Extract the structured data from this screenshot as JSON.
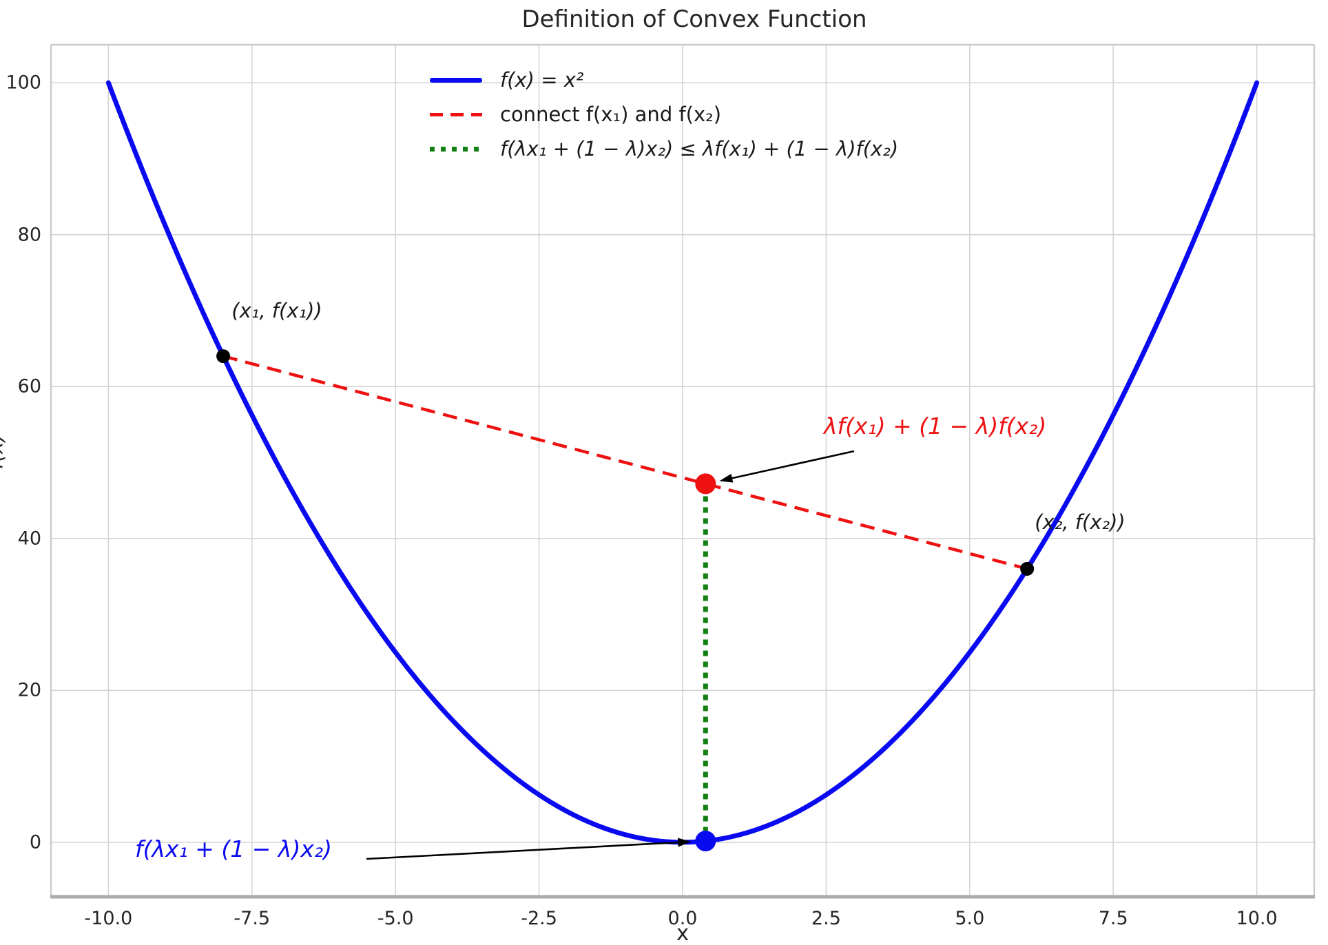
{
  "title": "Definition of Convex Function",
  "axes": {
    "xlabel": "x",
    "ylabel": "f(x)",
    "x_tick_labels": [
      "-10.0",
      "-7.5",
      "-5.0",
      "-2.5",
      "0.0",
      "2.5",
      "5.0",
      "7.5",
      "10.0"
    ],
    "y_tick_labels": [
      "0",
      "20",
      "40",
      "60",
      "80",
      "100"
    ]
  },
  "legend": {
    "items": [
      {
        "label": "f(x) = x²",
        "color": "#0a0af0",
        "line_style": "solid",
        "math": true
      },
      {
        "label": "connect f(x₁) and f(x₂)",
        "color": "#ee1111",
        "line_style": "dashed",
        "math": false
      },
      {
        "label": "f(λx₁ + (1 − λ)x₂) ≤ λf(x₁) + (1 − λ)f(x₂)",
        "color": "#128012",
        "line_style": "dotted",
        "math": true
      }
    ]
  },
  "annotations": {
    "point1_label": "(x₁, f(x₁))",
    "point2_label": "(x₂, f(x₂))",
    "chord_value_label": "λf(x₁) + (1 − λ)f(x₂)",
    "function_value_label": "f(λx₁ + (1 − λ)x₂)"
  },
  "colors": {
    "curve_blue": "#0a0af0",
    "chord_red": "#ee1111",
    "segment_green": "#128012",
    "grid": "#d4d4d4",
    "spine": "#cccccc",
    "bottom_spine": "#ababab",
    "text_dark": "#262626",
    "annotation_black": "#1a1a1a",
    "arrow": "#000000"
  },
  "chart_data": {
    "type": "line",
    "title": "Definition of Convex Function",
    "xlabel": "x",
    "ylabel": "f(x)",
    "xlim": [
      -11,
      11
    ],
    "ylim": [
      -7,
      105
    ],
    "grid": true,
    "legend_position": "upper center-left inside",
    "x_ticks": {
      "values": [
        -10,
        -7.5,
        -5,
        -2.5,
        0,
        2.5,
        5,
        7.5,
        10
      ],
      "labels": [
        "-10.0",
        "-7.5",
        "-5.0",
        "-2.5",
        "0.0",
        "2.5",
        "5.0",
        "7.5",
        "10.0"
      ]
    },
    "y_ticks": {
      "values": [
        0,
        20,
        40,
        60,
        80,
        100
      ],
      "labels": [
        "0",
        "20",
        "40",
        "60",
        "80",
        "100"
      ]
    },
    "curve": {
      "name": "f(x) = x²",
      "power": 2,
      "x_range": [
        -10,
        10
      ],
      "sample_step": 0.1,
      "color": "#0a0af0",
      "stroke_width": 7
    },
    "x1": -8,
    "x2": 6,
    "lambda": 0.4,
    "f_x1": 64,
    "f_x2": 36,
    "combination_x": 0.4,
    "chord_value_at_combination": 47.2,
    "function_value_at_combination": 0.16,
    "chord": {
      "x_from": -8,
      "y_from": 64,
      "x_to": 6,
      "y_to": 36,
      "color": "#ee1111",
      "style": "dashed",
      "stroke_width": 4.5
    },
    "vertical_segment": {
      "x": 0.4,
      "y_from": 0.16,
      "y_to": 47.2,
      "color": "#128012",
      "style": "dotted",
      "stroke_width": 7
    },
    "points": [
      {
        "name": "point-x1",
        "x": -8,
        "y": 64,
        "color": "#000000",
        "radius": 10
      },
      {
        "name": "point-x2",
        "x": 6,
        "y": 36,
        "color": "#000000",
        "radius": 10
      },
      {
        "name": "point-chord-value",
        "x": 0.4,
        "y": 47.2,
        "color": "#ee1111",
        "radius": 15
      },
      {
        "name": "point-function-value",
        "x": 0.4,
        "y": 0.16,
        "color": "#0a0af0",
        "radius": 15
      }
    ]
  }
}
